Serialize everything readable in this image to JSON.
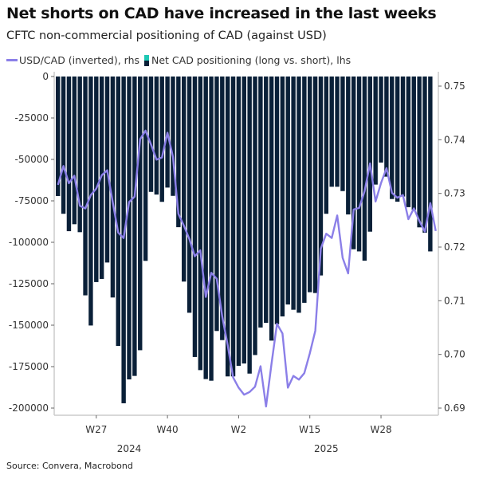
{
  "chart_data": {
    "type": "bar+line",
    "title": "Net shorts on CAD have increased in the last weeks",
    "subtitle": "CFTC non-commercial positioning of CAD (against USD)",
    "source": "Source: Convera, Macrobond",
    "x_tick_labels": [
      "W27",
      "W40",
      "W2",
      "W15",
      "W28"
    ],
    "x_tick_weeks": [
      7,
      20,
      33,
      46,
      59
    ],
    "year_labels": [
      {
        "label": "2024",
        "center_week": 13
      },
      {
        "label": "2025",
        "center_week": 49
      }
    ],
    "x_start": "2024 W20",
    "left_axis": {
      "ylim": [
        -200000,
        0
      ],
      "ticks": [
        "0",
        "-25000",
        "-50000",
        "-75000",
        "-100000",
        "-125000",
        "-150000",
        "-175000",
        "-200000"
      ]
    },
    "right_axis": {
      "ylim": [
        0.69,
        0.75
      ],
      "ticks": [
        "0.75",
        "0.74",
        "0.73",
        "0.72",
        "0.71",
        "0.70",
        "0.69"
      ]
    },
    "grid": false,
    "legend_position": "top-left",
    "series": [
      {
        "name": "USD/CAD (inverted), rhs",
        "type": "line",
        "axis": "right",
        "color": "#8b7fe8",
        "values": [
          0.7316,
          0.7351,
          0.7319,
          0.7333,
          0.7277,
          0.7272,
          0.7297,
          0.7309,
          0.7334,
          0.7343,
          0.7284,
          0.7227,
          0.7217,
          0.7284,
          0.7294,
          0.7401,
          0.7417,
          0.7391,
          0.7363,
          0.7367,
          0.7413,
          0.7368,
          0.7262,
          0.724,
          0.7215,
          0.7183,
          0.7194,
          0.7107,
          0.7152,
          0.7141,
          0.7071,
          0.7017,
          0.6957,
          0.6938,
          0.6925,
          0.693,
          0.694,
          0.6978,
          0.6903,
          0.6982,
          0.7057,
          0.7039,
          0.6938,
          0.696,
          0.6953,
          0.6965,
          0.7002,
          0.7044,
          0.7197,
          0.7225,
          0.7217,
          0.7259,
          0.718,
          0.7151,
          0.727,
          0.7273,
          0.7304,
          0.7356,
          0.7285,
          0.7319,
          0.7347,
          0.7301,
          0.7292,
          0.7297,
          0.7252,
          0.7272,
          0.7249,
          0.7229,
          0.7282,
          0.723
        ]
      },
      {
        "name": "Net CAD positioning (long vs. short), lhs",
        "type": "bar",
        "axis": "left",
        "color": "#0a2038",
        "legend_colors": [
          "#1fc8b4",
          "#0a2038"
        ],
        "values": [
          -72100,
          -82800,
          -93300,
          -89100,
          -93900,
          -132000,
          -150200,
          -124000,
          -122100,
          -112200,
          -133300,
          -162500,
          -197100,
          -182700,
          -180600,
          -165100,
          -111200,
          -69600,
          -71200,
          -75600,
          -67000,
          -72000,
          -90900,
          -123700,
          -142500,
          -169200,
          -177100,
          -182500,
          -183500,
          -153500,
          -159000,
          -180900,
          -180900,
          -174500,
          -173100,
          -179200,
          -168000,
          -151400,
          -148600,
          -159300,
          -149400,
          -144700,
          -137500,
          -140700,
          -142500,
          -136500,
          -130100,
          -130600,
          -120000,
          -82800,
          -66500,
          -66500,
          -69100,
          -83200,
          -104200,
          -105500,
          -111100,
          -93600,
          -65200,
          -51900,
          -60400,
          -73900,
          -75500,
          -72400,
          -78800,
          -80400,
          -91000,
          -94200,
          -105500
        ]
      }
    ]
  }
}
